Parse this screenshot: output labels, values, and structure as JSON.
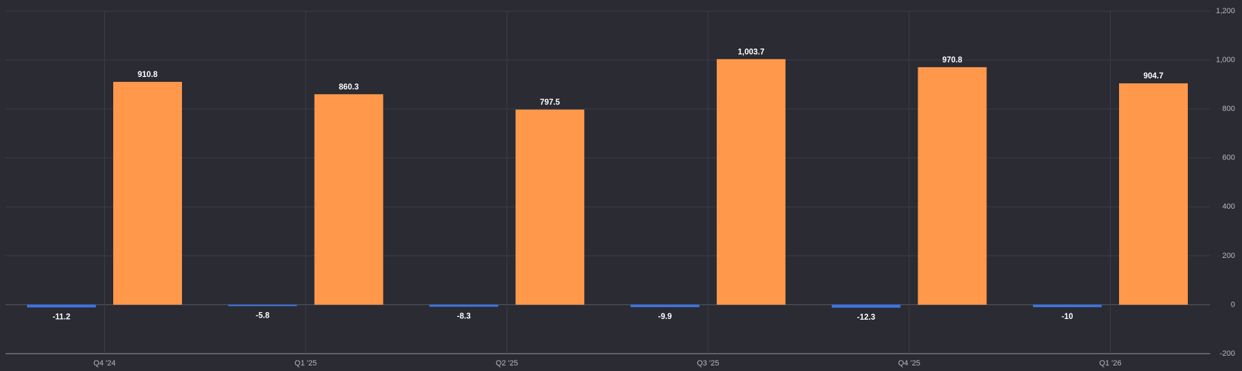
{
  "chart_data": {
    "type": "bar",
    "categories": [
      "Q4 '24",
      "Q1 '25",
      "Q2 '25",
      "Q3 '25",
      "Q4 '25",
      "Q1 '26"
    ],
    "series": [
      {
        "color": "#3b74e4",
        "values": [
          -11.2,
          -5.8,
          -8.3,
          -9.9,
          -12.3,
          -10
        ]
      },
      {
        "color": "#ff984b",
        "values": [
          910.8,
          860.3,
          797.5,
          1003.7,
          970.8,
          904.7
        ],
        "value_labels": [
          "910.8",
          "860.3",
          "797.5",
          "1,003.7",
          "970.8",
          "904.7"
        ]
      }
    ],
    "ylim": [
      -200,
      1200
    ],
    "yticks": [
      -200,
      0,
      200,
      400,
      600,
      800,
      {
        "value": 1000,
        "label": "1,000"
      },
      {
        "value": 1200,
        "label": "1,200"
      }
    ],
    "y_axis_side": "right",
    "grid": true
  }
}
